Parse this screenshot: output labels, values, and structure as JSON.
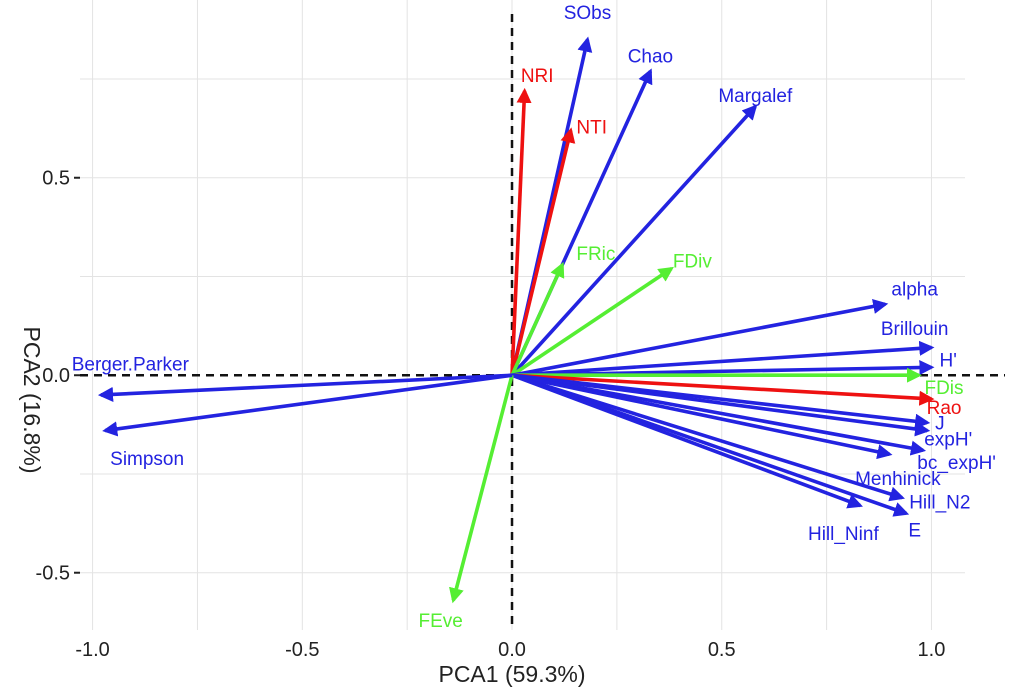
{
  "chart_data": {
    "type": "biplot",
    "xlabel": "PCA1 (59.3%)",
    "ylabel": "PCA2 (16.8%)",
    "xlim": [
      -1.03,
      1.08
    ],
    "ylim": [
      -0.645,
      0.95
    ],
    "x_ticks": [
      {
        "value": -1.0,
        "label": "-1.0"
      },
      {
        "value": -0.5,
        "label": "-0.5"
      },
      {
        "value": 0.0,
        "label": "0.0"
      },
      {
        "value": 0.5,
        "label": "0.5"
      },
      {
        "value": 1.0,
        "label": "1.0"
      }
    ],
    "y_ticks": [
      {
        "value": 0.5,
        "label": "0.5"
      },
      {
        "value": 0.0,
        "label": "0.0"
      },
      {
        "value": -0.5,
        "label": "-0.5"
      }
    ],
    "grid": true,
    "colors": {
      "blue": "#2323e0",
      "red": "#ee1111",
      "green": "#55ee33"
    },
    "vectors": [
      {
        "name": "SObs",
        "x": 0.18,
        "y": 0.85,
        "color": "blue",
        "lx": 0.18,
        "ly": 0.92
      },
      {
        "name": "Chao",
        "x": 0.33,
        "y": 0.77,
        "color": "blue",
        "lx": 0.33,
        "ly": 0.81
      },
      {
        "name": "Margalef",
        "x": 0.58,
        "y": 0.68,
        "color": "blue",
        "lx": 0.58,
        "ly": 0.71
      },
      {
        "name": "NRI",
        "x": 0.03,
        "y": 0.72,
        "color": "red",
        "lx": 0.06,
        "ly": 0.76
      },
      {
        "name": "NTI",
        "x": 0.14,
        "y": 0.62,
        "color": "red",
        "lx": 0.19,
        "ly": 0.63
      },
      {
        "name": "FRic",
        "x": 0.12,
        "y": 0.28,
        "color": "green",
        "lx": 0.2,
        "ly": 0.31
      },
      {
        "name": "FDiv",
        "x": 0.38,
        "y": 0.27,
        "color": "green",
        "lx": 0.43,
        "ly": 0.29
      },
      {
        "name": "alpha",
        "x": 0.89,
        "y": 0.18,
        "color": "blue",
        "lx": 0.96,
        "ly": 0.22
      },
      {
        "name": "Brillouin",
        "x": 1.0,
        "y": 0.07,
        "color": "blue",
        "lx": 0.96,
        "ly": 0.12
      },
      {
        "name": "H'",
        "x": 1.0,
        "y": 0.02,
        "color": "blue",
        "lx": 1.04,
        "ly": 0.04
      },
      {
        "name": "FDis",
        "x": 0.97,
        "y": 0.0,
        "color": "green",
        "lx": 1.03,
        "ly": -0.03
      },
      {
        "name": "Rao",
        "x": 1.0,
        "y": -0.06,
        "color": "red",
        "lx": 1.03,
        "ly": -0.08
      },
      {
        "name": "J",
        "x": 0.99,
        "y": -0.12,
        "color": "blue",
        "lx": 1.02,
        "ly": -0.12
      },
      {
        "name": "expH'",
        "x": 0.99,
        "y": -0.14,
        "color": "blue",
        "lx": 1.04,
        "ly": -0.16
      },
      {
        "name": "bc_expH'",
        "x": 0.98,
        "y": -0.19,
        "color": "blue",
        "lx": 1.06,
        "ly": -0.22
      },
      {
        "name": "Menhinick",
        "x": 0.9,
        "y": -0.2,
        "color": "blue",
        "lx": 0.92,
        "ly": -0.26
      },
      {
        "name": "Hill_N2",
        "x": 0.93,
        "y": -0.31,
        "color": "blue",
        "lx": 1.02,
        "ly": -0.32
      },
      {
        "name": "E",
        "x": 0.94,
        "y": -0.35,
        "color": "blue",
        "lx": 0.96,
        "ly": -0.39
      },
      {
        "name": "Hill_Ninf",
        "x": 0.83,
        "y": -0.33,
        "color": "blue",
        "lx": 0.79,
        "ly": -0.4
      },
      {
        "name": "FEve",
        "x": -0.14,
        "y": -0.57,
        "color": "green",
        "lx": -0.17,
        "ly": -0.62
      },
      {
        "name": "Berger.Parker",
        "x": -0.98,
        "y": -0.05,
        "color": "blue",
        "lx": -0.91,
        "ly": 0.03
      },
      {
        "name": "Simpson",
        "x": -0.97,
        "y": -0.14,
        "color": "blue",
        "lx": -0.87,
        "ly": -0.21
      }
    ]
  }
}
